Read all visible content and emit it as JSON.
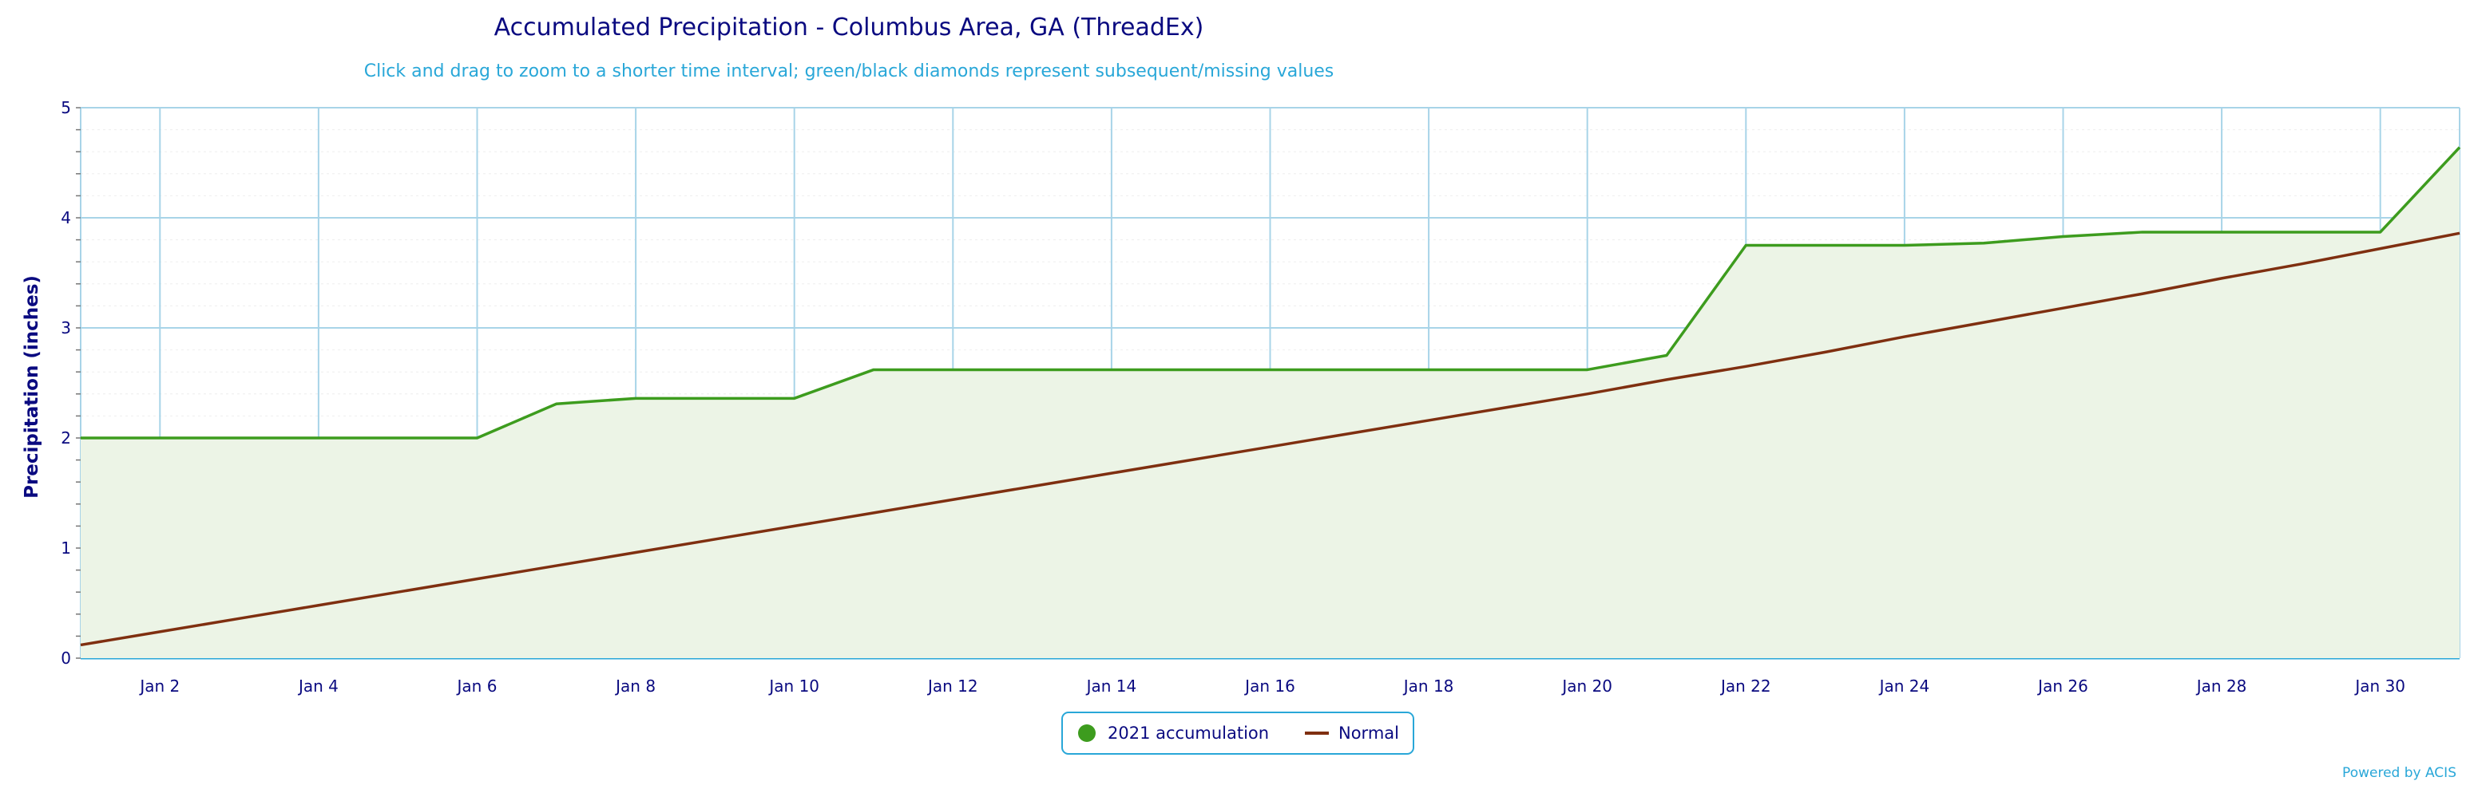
{
  "chart_data": {
    "type": "line",
    "title": "Accumulated Precipitation - Columbus Area, GA (ThreadEx)",
    "subtitle": "Click and drag to zoom to a shorter time interval; green/black diamonds represent subsequent/missing values",
    "ylabel": "Precipitation (inches)",
    "xlabel": "",
    "ylim": [
      0,
      5
    ],
    "yticks": [
      "0",
      "1",
      "2",
      "3",
      "4",
      "5"
    ],
    "x_range_days": [
      1,
      31
    ],
    "xticks": [
      {
        "day": 2,
        "label": "Jan 2"
      },
      {
        "day": 4,
        "label": "Jan 4"
      },
      {
        "day": 6,
        "label": "Jan 6"
      },
      {
        "day": 8,
        "label": "Jan 8"
      },
      {
        "day": 10,
        "label": "Jan 10"
      },
      {
        "day": 12,
        "label": "Jan 12"
      },
      {
        "day": 14,
        "label": "Jan 14"
      },
      {
        "day": 16,
        "label": "Jan 16"
      },
      {
        "day": 18,
        "label": "Jan 18"
      },
      {
        "day": 20,
        "label": "Jan 20"
      },
      {
        "day": 22,
        "label": "Jan 22"
      },
      {
        "day": 24,
        "label": "Jan 24"
      },
      {
        "day": 26,
        "label": "Jan 26"
      },
      {
        "day": 28,
        "label": "Jan 28"
      },
      {
        "day": 30,
        "label": "Jan 30"
      }
    ],
    "grid": true,
    "legend_position": "bottom-center",
    "series": [
      {
        "name": "2021 accumulation",
        "color": "#3d9c1e",
        "fill": "#ecf4e6",
        "x": [
          1,
          2,
          3,
          4,
          5,
          6,
          7,
          8,
          9,
          10,
          11,
          12,
          13,
          14,
          15,
          16,
          17,
          18,
          19,
          20,
          21,
          22,
          23,
          24,
          25,
          26,
          27,
          28,
          29,
          30,
          31
        ],
        "values": [
          2.0,
          2.0,
          2.0,
          2.0,
          2.0,
          2.0,
          2.31,
          2.36,
          2.36,
          2.36,
          2.62,
          2.62,
          2.62,
          2.62,
          2.62,
          2.62,
          2.62,
          2.62,
          2.62,
          2.62,
          2.75,
          3.75,
          3.75,
          3.75,
          3.77,
          3.83,
          3.87,
          3.87,
          3.87,
          3.87,
          4.64
        ]
      },
      {
        "name": "Normal",
        "color": "#7f2f10",
        "x": [
          1,
          2,
          3,
          4,
          5,
          6,
          7,
          8,
          9,
          10,
          11,
          12,
          13,
          14,
          15,
          16,
          17,
          18,
          19,
          20,
          21,
          22,
          23,
          24,
          25,
          26,
          27,
          28,
          29,
          30,
          31
        ],
        "values": [
          0.12,
          0.24,
          0.36,
          0.48,
          0.6,
          0.72,
          0.84,
          0.96,
          1.08,
          1.2,
          1.32,
          1.44,
          1.56,
          1.68,
          1.8,
          1.92,
          2.04,
          2.16,
          2.28,
          2.4,
          2.53,
          2.65,
          2.78,
          2.92,
          3.05,
          3.18,
          3.31,
          3.45,
          3.58,
          3.72,
          3.86
        ]
      }
    ]
  },
  "credit": "Powered by ACIS"
}
